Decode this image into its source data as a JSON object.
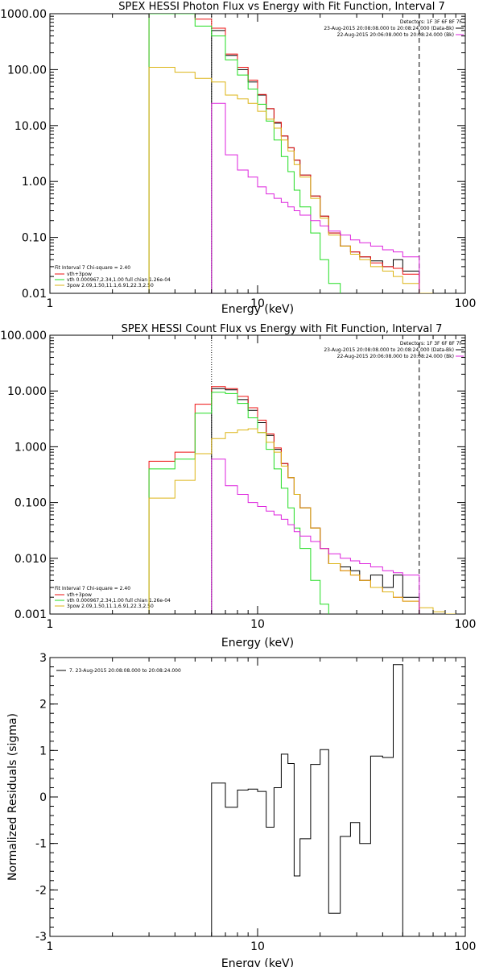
{
  "colors": {
    "data": "#000000",
    "total": "#ee1111",
    "thermal": "#22dd22",
    "powerlaw": "#dcb414",
    "background": "#dd22dd"
  },
  "chart_data": [
    {
      "type": "line",
      "title": "SPEX HESSI Photon Flux vs Energy with Fit Function, Interval 7",
      "xlabel": "Energy (keV)",
      "ylabel": "",
      "xscale": "log",
      "yscale": "log",
      "xlim": [
        1,
        100
      ],
      "ylim": [
        0.01,
        1000
      ],
      "xticks": [
        1,
        10,
        100
      ],
      "xtick_labels": [
        "1",
        "10",
        "100"
      ],
      "yticks": [
        0.01,
        0.1,
        1,
        10,
        100,
        1000
      ],
      "ytick_labels": [
        "0.01",
        "0.10",
        "1.00",
        "10.00",
        "100.00",
        "1000.00"
      ],
      "vlines": [
        {
          "x": 6,
          "style": "dotted"
        },
        {
          "x": 60,
          "style": "dashed"
        }
      ],
      "info": [
        "Detectors: 1F 3F 6F 8F 7F",
        "23-Aug-2015 20:08:08.000 to 20:08:24.000 (Data-Bk)",
        "22-Aug-2015 20:06:08.000 to 20:08:24.000 (Bk)"
      ],
      "legend": [
        "Fit Interval 7   Chi-square = 2.40",
        "vth+3pow",
        "vth 0.000967,2.34,1.00  full chian 1.26e-04",
        "3pow 2.09,1.50,11.1,6.91,22.3,2.50"
      ],
      "legend_position": "bottom-left",
      "edges": [
        3,
        4,
        5,
        6,
        7,
        8,
        9,
        10,
        11,
        12,
        13,
        14,
        15,
        16,
        18,
        20,
        22,
        25,
        28,
        31,
        35,
        40,
        45,
        50,
        60,
        70
      ],
      "series": [
        {
          "key": "data",
          "values": [
            null,
            null,
            null,
            500,
            180,
            100,
            60,
            35,
            20,
            11,
            6.5,
            4.0,
            2.4,
            1.3,
            0.55,
            0.24,
            0.12,
            0.07,
            0.055,
            0.045,
            0.038,
            0.03,
            0.04,
            0.025,
            null
          ]
        },
        {
          "key": "total",
          "values": [
            1100,
            1100,
            800,
            550,
            190,
            110,
            65,
            36,
            20,
            11.5,
            6.5,
            4.0,
            2.4,
            1.3,
            0.55,
            0.24,
            0.12,
            0.07,
            0.055,
            0.045,
            0.035,
            0.03,
            0.028,
            0.022,
            null
          ]
        },
        {
          "key": "thermal",
          "values": [
            1000,
            1000,
            600,
            400,
            150,
            80,
            45,
            24,
            12,
            5.5,
            2.8,
            1.5,
            0.7,
            0.35,
            0.12,
            0.04,
            0.015,
            0.006,
            null,
            null,
            null,
            null,
            null,
            null,
            null
          ]
        },
        {
          "key": "powerlaw",
          "values": [
            110,
            90,
            70,
            60,
            35,
            30,
            25,
            18,
            13,
            9,
            5.5,
            3.5,
            2.0,
            1.2,
            0.5,
            0.22,
            0.11,
            0.07,
            0.05,
            0.04,
            0.03,
            0.025,
            0.02,
            0.015,
            0.01
          ]
        },
        {
          "key": "background",
          "values": [
            null,
            null,
            null,
            25,
            3.0,
            1.6,
            1.2,
            0.8,
            0.6,
            0.5,
            0.42,
            0.35,
            0.3,
            0.25,
            0.2,
            0.16,
            0.13,
            0.11,
            0.09,
            0.08,
            0.07,
            0.06,
            0.055,
            0.045,
            null
          ]
        }
      ]
    },
    {
      "type": "line",
      "title": "SPEX HESSI Count Flux vs Energy with Fit Function, Interval 7",
      "xlabel": "Energy (keV)",
      "ylabel": "",
      "xscale": "log",
      "yscale": "log",
      "xlim": [
        1,
        100
      ],
      "ylim": [
        0.001,
        100
      ],
      "xticks": [
        1,
        10,
        100
      ],
      "xtick_labels": [
        "1",
        "10",
        "100"
      ],
      "yticks": [
        0.001,
        0.01,
        0.1,
        1,
        10,
        100
      ],
      "ytick_labels": [
        "0.001",
        "0.010",
        "0.100",
        "1.000",
        "10.000",
        "100.000"
      ],
      "vlines": [
        {
          "x": 6,
          "style": "dotted"
        },
        {
          "x": 60,
          "style": "dashed"
        }
      ],
      "info": [
        "Detectors: 1F 3F 6F 8F 7F",
        "23-Aug-2015 20:08:08.000 to 20:08:24.000 (Data-Bk)",
        "22-Aug-2015 20:06:08.000 to 20:08:24.000 (Bk)"
      ],
      "legend": [
        "Fit Interval 7   Chi-square = 2.40",
        "vth+3pow",
        "vth 0.000967,2.34,1.00  full chian 1.26e-04",
        "3pow 2.09,1.50,11.1,6.91,22.3,2.50"
      ],
      "legend_position": "bottom-left",
      "edges": [
        3,
        4,
        5,
        6,
        7,
        8,
        9,
        10,
        11,
        12,
        13,
        14,
        15,
        16,
        18,
        20,
        22,
        25,
        28,
        31,
        35,
        40,
        45,
        50,
        60,
        70,
        80,
        90
      ],
      "series": [
        {
          "key": "data",
          "values": [
            null,
            null,
            null,
            11,
            10.5,
            7.0,
            4.5,
            2.7,
            1.6,
            0.9,
            0.5,
            0.28,
            0.14,
            0.08,
            0.035,
            0.015,
            0.008,
            0.007,
            0.006,
            0.004,
            0.005,
            0.003,
            0.005,
            0.002,
            null,
            null,
            null
          ]
        },
        {
          "key": "total",
          "values": [
            0.55,
            0.8,
            5.8,
            12,
            11,
            8.0,
            5.0,
            3.0,
            1.7,
            0.95,
            0.5,
            0.28,
            0.14,
            0.08,
            0.035,
            0.015,
            0.008,
            0.006,
            0.005,
            0.004,
            0.003,
            0.0025,
            0.002,
            0.0017,
            null,
            null,
            null
          ]
        },
        {
          "key": "thermal",
          "values": [
            0.4,
            0.6,
            4.0,
            9.5,
            9.0,
            6.0,
            3.3,
            1.8,
            0.9,
            0.4,
            0.18,
            0.08,
            0.035,
            0.015,
            0.004,
            0.0015,
            null,
            null,
            null,
            null,
            null,
            null,
            null,
            null,
            null,
            null,
            null
          ]
        },
        {
          "key": "powerlaw",
          "values": [
            0.12,
            0.25,
            0.75,
            1.4,
            1.8,
            2.0,
            2.1,
            1.8,
            1.2,
            0.8,
            0.45,
            0.28,
            0.14,
            0.08,
            0.035,
            0.015,
            0.008,
            0.006,
            0.005,
            0.004,
            0.003,
            0.0025,
            0.002,
            0.0017,
            0.0013,
            0.0011,
            0.001
          ]
        },
        {
          "key": "background",
          "values": [
            null,
            null,
            null,
            0.6,
            0.2,
            0.14,
            0.1,
            0.085,
            0.07,
            0.06,
            0.05,
            0.04,
            0.03,
            0.025,
            0.02,
            0.015,
            0.012,
            0.01,
            0.009,
            0.008,
            0.007,
            0.006,
            0.0055,
            0.005,
            null,
            null,
            null
          ]
        }
      ]
    },
    {
      "type": "line",
      "title": "",
      "xlabel": "Energy (keV)",
      "ylabel": "Normalized Residuals (sigma)",
      "xscale": "log",
      "yscale": "linear",
      "xlim": [
        1,
        100
      ],
      "ylim": [
        -3,
        3
      ],
      "xticks": [
        1,
        10,
        100
      ],
      "xtick_labels": [
        "1",
        "10",
        "100"
      ],
      "yticks": [
        -3,
        -2,
        -1,
        0,
        1,
        2,
        3
      ],
      "ytick_labels": [
        "-3",
        "-2",
        "-1",
        "0",
        "1",
        "2",
        "3"
      ],
      "legend": [
        "7. 23-Aug-2015 20:08:08.000 to 20:08:24.000"
      ],
      "legend_position": "top-left",
      "edges": [
        6,
        7,
        8,
        9,
        10,
        11,
        12,
        13,
        14,
        15,
        16,
        18,
        20,
        22,
        25,
        28,
        31,
        35,
        40,
        45,
        50,
        60
      ],
      "series": [
        {
          "key": "data",
          "values": [
            0.3,
            -0.22,
            0.15,
            0.17,
            0.12,
            -0.65,
            0.2,
            0.92,
            0.72,
            -1.7,
            -0.9,
            0.7,
            1.02,
            -2.5,
            -0.85,
            -0.55,
            -1.0,
            0.88,
            0.85,
            2.85,
            null
          ]
        }
      ]
    }
  ]
}
